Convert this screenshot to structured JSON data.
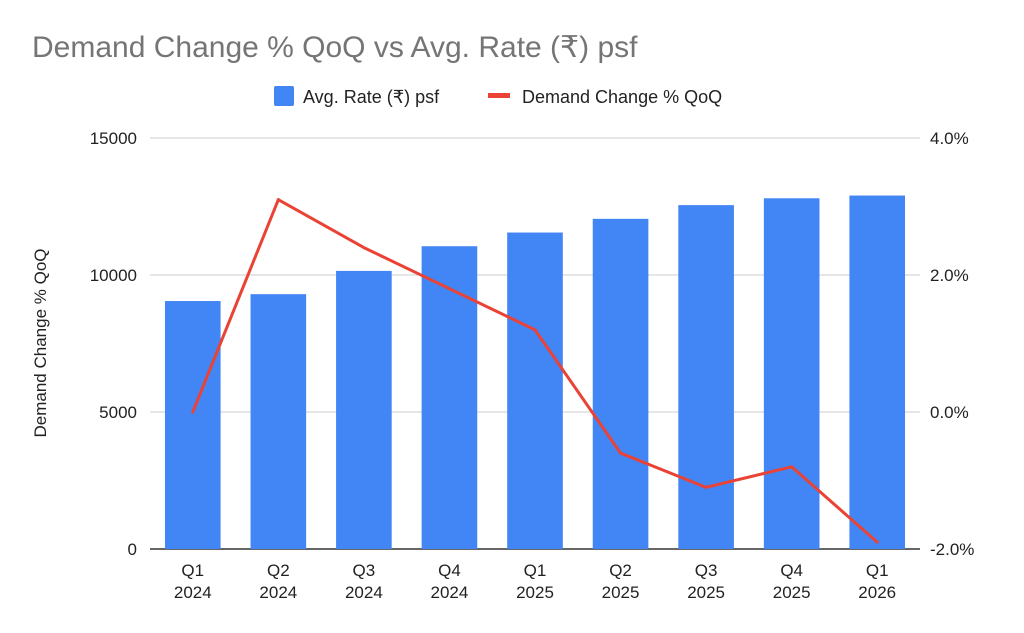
{
  "chart_data": {
    "type": "bar+line",
    "title": "Demand Change % QoQ vs Avg. Rate (₹) psf",
    "categories": [
      [
        "Q1",
        "2024"
      ],
      [
        "Q2",
        "2024"
      ],
      [
        "Q3",
        "2024"
      ],
      [
        "Q4",
        "2024"
      ],
      [
        "Q1",
        "2025"
      ],
      [
        "Q2",
        "2025"
      ],
      [
        "Q3",
        "2025"
      ],
      [
        "Q4",
        "2025"
      ],
      [
        "Q1",
        "2026"
      ]
    ],
    "series": [
      {
        "name": "Avg. Rate (₹) psf",
        "type": "bar",
        "axis": "left",
        "color": "#4285f4",
        "values": [
          9050,
          9300,
          10150,
          11050,
          11550,
          12050,
          12550,
          12800,
          12900
        ]
      },
      {
        "name": "Demand Change % QoQ",
        "type": "line",
        "axis": "right",
        "color": "#ea4335",
        "values": [
          0.0,
          3.1,
          2.4,
          1.8,
          1.2,
          -0.6,
          -1.1,
          -0.8,
          -1.9
        ]
      }
    ],
    "left_axis": {
      "label": "Demand Change % QoQ",
      "range": [
        0,
        15000
      ],
      "ticks": [
        0,
        5000,
        10000,
        15000
      ],
      "tick_labels": [
        "0",
        "5000",
        "10000",
        "15000"
      ]
    },
    "right_axis": {
      "label": "",
      "range": [
        -2.0,
        4.0
      ],
      "ticks": [
        -2.0,
        0.0,
        2.0,
        4.0
      ],
      "tick_labels": [
        "-2.0%",
        "0.0%",
        "2.0%",
        "4.0%"
      ]
    },
    "grid": true,
    "legend_position": "top-center"
  }
}
